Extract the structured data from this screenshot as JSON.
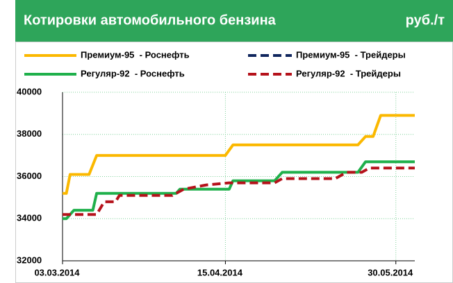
{
  "chart_data": {
    "type": "line",
    "title": "Котировки автомобильного бензина",
    "unit": "руб./т",
    "xlim": [
      "2014-03-03",
      "2014-06-04"
    ],
    "xticks": [
      {
        "value": "2014-03-03",
        "label": "03.03.2014"
      },
      {
        "value": "2014-04-15",
        "label": "15.04.2014"
      },
      {
        "value": "2014-05-30",
        "label": "30.05.2014"
      }
    ],
    "ylim": [
      32000,
      40000
    ],
    "yticks": [
      32000,
      34000,
      36000,
      38000,
      40000
    ],
    "grid": true,
    "series": [
      {
        "name": "Премиум-95  - Роснефть",
        "color": "#fbb800",
        "dash": false,
        "x": [
          "2014-03-03",
          "2014-03-04",
          "2014-03-05",
          "2014-03-10",
          "2014-03-12",
          "2014-04-15",
          "2014-04-17",
          "2014-05-20",
          "2014-05-22",
          "2014-05-24",
          "2014-05-26",
          "2014-06-04"
        ],
        "values": [
          35200,
          35200,
          36100,
          36100,
          37000,
          37000,
          37500,
          37500,
          37900,
          37900,
          38900,
          38900
        ]
      },
      {
        "name": "Премиум-95  - Трейдеры",
        "color": "#10265e",
        "dash": true,
        "x": [],
        "values": []
      },
      {
        "name": "Регуляр-92  - Роснефть",
        "color": "#1fb04b",
        "dash": false,
        "x": [
          "2014-03-03",
          "2014-03-04",
          "2014-03-06",
          "2014-03-11",
          "2014-03-12",
          "2014-04-02",
          "2014-04-03",
          "2014-04-16",
          "2014-04-17",
          "2014-04-28",
          "2014-04-30",
          "2014-05-20",
          "2014-05-22",
          "2014-06-04"
        ],
        "values": [
          34000,
          34000,
          34400,
          34400,
          35200,
          35200,
          35400,
          35400,
          35800,
          35800,
          36200,
          36200,
          36700,
          36700
        ]
      },
      {
        "name": "Регуляр-92  - Трейдеры",
        "color": "#b5121b",
        "dash": true,
        "x": [
          "2014-03-03",
          "2014-03-12",
          "2014-03-14",
          "2014-03-17",
          "2014-03-18",
          "2014-04-01",
          "2014-04-04",
          "2014-04-10",
          "2014-04-16",
          "2014-04-28",
          "2014-04-30",
          "2014-05-14",
          "2014-05-17",
          "2014-05-21",
          "2014-05-23",
          "2014-06-04"
        ],
        "values": [
          34200,
          34200,
          34800,
          34800,
          35100,
          35100,
          35400,
          35600,
          35700,
          35700,
          35900,
          35900,
          36200,
          36200,
          36400,
          36400
        ]
      }
    ]
  }
}
